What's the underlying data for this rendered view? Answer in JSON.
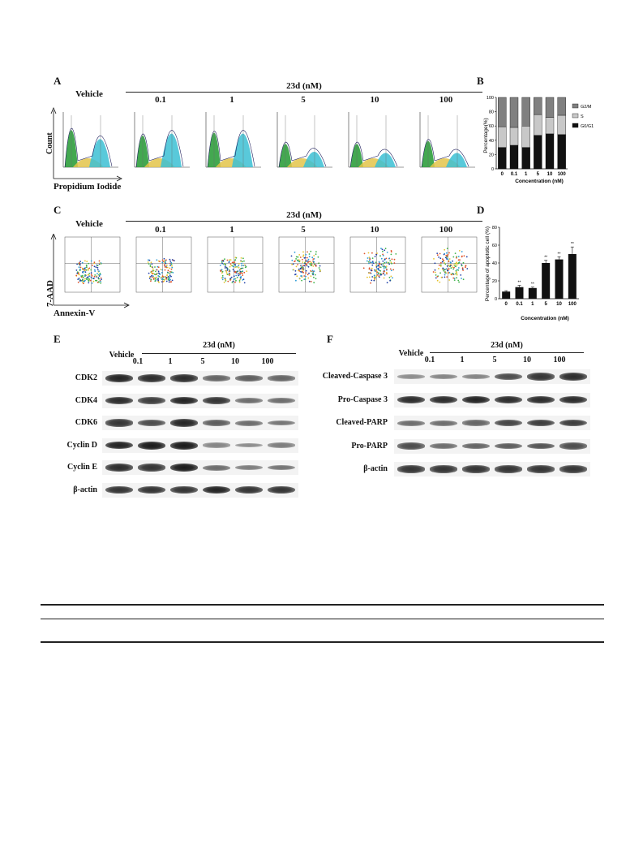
{
  "panel_letters": {
    "A": "A",
    "B": "B",
    "C": "C",
    "D": "D",
    "E": "E",
    "F": "F"
  },
  "panel_A": {
    "header": "23d (nM)",
    "vehicle_label": "Vehicle",
    "concentrations": [
      "0.1",
      "1",
      "5",
      "10",
      "100"
    ],
    "y_axis_label": "Count",
    "x_axis_label": "Propidium Iodide"
  },
  "panel_B": {
    "ylabel": "Percentage(%)",
    "xlabel": "Concentration (nM)",
    "legend": [
      "G2/M",
      "S",
      "G0/G1"
    ],
    "colors": {
      "G0G1": "#111111",
      "S": "#c8c8c8",
      "G2M": "#808080"
    }
  },
  "panel_C": {
    "header": "23d (nM)",
    "vehicle_label": "Vehicle",
    "concentrations": [
      "0.1",
      "1",
      "5",
      "10",
      "100"
    ],
    "y_axis_label": "7-AAD",
    "x_axis_label": "Annexin-V"
  },
  "panel_D": {
    "ylabel": "Percentage of apoptotic cell (%)",
    "xlabel": "Concentration (nM)"
  },
  "panel_E": {
    "vehicle_label": "Vehicle",
    "header": "23d (nM)",
    "concentrations": [
      "0.1",
      "1",
      "5",
      "10",
      "100"
    ],
    "rows": [
      "CDK2",
      "CDK4",
      "CDK6",
      "Cyclin D",
      "Cyclin E",
      "β-actin"
    ]
  },
  "panel_F": {
    "vehicle_label": "Vehicle",
    "header": "23d (nM)",
    "concentrations": [
      "0.1",
      "1",
      "5",
      "10",
      "100"
    ],
    "rows": [
      "Cleaved-Caspase 3",
      "Pro-Caspase 3",
      "Cleaved-PARP",
      "Pro-PARP",
      "β-actin"
    ]
  },
  "chart_data": [
    {
      "type": "bar",
      "stacked": true,
      "categories": [
        "0",
        "0.1",
        "1",
        "5",
        "10",
        "100"
      ],
      "series": [
        {
          "name": "G0/G1",
          "values": [
            30,
            33,
            30,
            47,
            49,
            48
          ]
        },
        {
          "name": "S",
          "values": [
            29,
            25,
            30,
            29,
            23,
            27
          ]
        },
        {
          "name": "G2/M",
          "values": [
            41,
            42,
            40,
            24,
            28,
            25
          ]
        }
      ],
      "xlabel": "Concentration (nM)",
      "ylabel": "Percentage(%)",
      "ylim": [
        0,
        100
      ],
      "yticks": [
        0,
        20,
        40,
        60,
        80,
        100
      ],
      "legend": "right"
    },
    {
      "type": "bar",
      "categories": [
        "0",
        "0.1",
        "1",
        "5",
        "10",
        "100"
      ],
      "values": [
        8,
        13,
        12,
        40,
        44,
        50
      ],
      "errors": [
        1,
        2,
        1,
        3,
        3,
        8
      ],
      "significance": [
        "",
        "**",
        "**",
        "**",
        "**",
        "**"
      ],
      "xlabel": "Concentration (nM)",
      "ylabel": "Percentage of apoptotic cell (%)",
      "ylim": [
        0,
        80
      ],
      "yticks": [
        0,
        20,
        40,
        60,
        80
      ]
    }
  ],
  "blots_E": [
    [
      0.95,
      0.9,
      0.9,
      0.55,
      0.6,
      0.55
    ],
    [
      0.9,
      0.8,
      0.95,
      0.85,
      0.5,
      0.5
    ],
    [
      0.85,
      0.7,
      0.95,
      0.6,
      0.5,
      0.45
    ],
    [
      0.95,
      1.0,
      1.0,
      0.35,
      0.3,
      0.4
    ],
    [
      0.9,
      0.85,
      1.0,
      0.5,
      0.4,
      0.45
    ],
    [
      0.85,
      0.85,
      0.85,
      0.95,
      0.85,
      0.85
    ]
  ],
  "blots_F": [
    [
      0.3,
      0.35,
      0.35,
      0.7,
      0.85,
      0.9
    ],
    [
      0.9,
      0.9,
      0.95,
      0.9,
      0.9,
      0.9
    ],
    [
      0.5,
      0.5,
      0.55,
      0.75,
      0.8,
      0.8
    ],
    [
      0.7,
      0.5,
      0.55,
      0.6,
      0.65,
      0.7
    ],
    [
      0.85,
      0.85,
      0.85,
      0.85,
      0.85,
      0.85
    ]
  ]
}
